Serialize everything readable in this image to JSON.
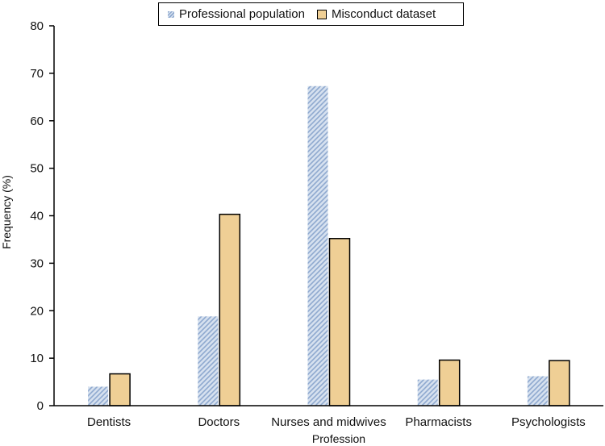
{
  "chart_data": {
    "type": "bar",
    "categories": [
      "Dentists",
      "Doctors",
      "Nurses and midwives",
      "Pharmacists",
      "Psychologists"
    ],
    "series": [
      {
        "name": "Professional population",
        "values": [
          4,
          18.8,
          67.3,
          5.5,
          6.2
        ]
      },
      {
        "name": "Misconduct dataset",
        "values": [
          6.7,
          40.3,
          35.2,
          9.6,
          9.5
        ]
      }
    ],
    "xlabel": "Profession",
    "ylabel": "Frequency (%)",
    "ylim": [
      0,
      80
    ],
    "yticks": [
      0,
      10,
      20,
      30,
      40,
      50,
      60,
      70,
      80
    ],
    "grid": false,
    "legend_position": "top-center",
    "colors": {
      "population_light": "#d6e1ef",
      "population_dark": "#8fa9cf",
      "misconduct_fill": "#efcf95",
      "misconduct_border": "#000000"
    }
  }
}
